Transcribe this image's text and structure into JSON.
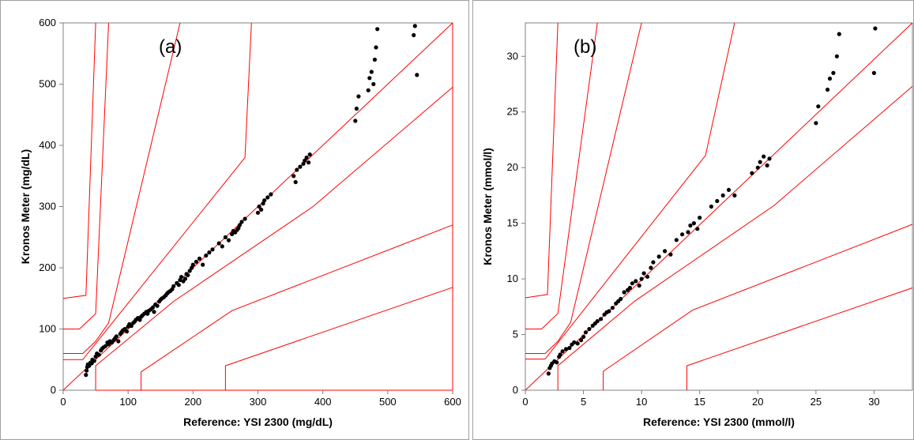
{
  "chart_data": [
    {
      "type": "scatter",
      "panel_label": "(a)",
      "xlabel": "Reference: YSI 2300 (mg/dL)",
      "ylabel": "Kronos Meter (mg/dL)",
      "xlim": [
        0,
        600
      ],
      "ylim": [
        0,
        600
      ],
      "xticks": [
        "0",
        "100",
        "200",
        "300",
        "400",
        "500",
        "600"
      ],
      "yticks": [
        "0",
        "100",
        "200",
        "300",
        "400",
        "500",
        "600"
      ],
      "grid": false,
      "zone_color": "#ff0000",
      "point_color": "#000000",
      "zone_lines": [
        [
          [
            0,
            150
          ],
          [
            35,
            155
          ],
          [
            50,
            600
          ]
        ],
        [
          [
            0,
            100
          ],
          [
            25,
            100
          ],
          [
            50,
            125
          ],
          [
            70,
            600
          ]
        ],
        [
          [
            0,
            60
          ],
          [
            30,
            60
          ],
          [
            50,
            80
          ],
          [
            70,
            110
          ],
          [
            180,
            600
          ]
        ],
        [
          [
            0,
            50
          ],
          [
            30,
            50
          ],
          [
            280,
            380
          ],
          [
            290,
            600
          ]
        ],
        [
          [
            0,
            0
          ],
          [
            600,
            600
          ]
        ],
        [
          [
            50,
            0
          ],
          [
            50,
            40
          ],
          [
            170,
            145
          ],
          [
            385,
            300
          ],
          [
            600,
            495
          ]
        ],
        [
          [
            120,
            0
          ],
          [
            120,
            30
          ],
          [
            260,
            130
          ],
          [
            600,
            270
          ]
        ],
        [
          [
            250,
            0
          ],
          [
            250,
            40
          ],
          [
            600,
            168
          ]
        ],
        [
          [
            50,
            0
          ],
          [
            600,
            0
          ],
          [
            600,
            600
          ]
        ]
      ],
      "x": [
        35,
        36,
        37,
        38,
        40,
        42,
        44,
        45,
        48,
        50,
        52,
        55,
        58,
        60,
        62,
        65,
        68,
        70,
        72,
        75,
        78,
        80,
        82,
        85,
        88,
        90,
        92,
        95,
        98,
        100,
        102,
        105,
        108,
        110,
        112,
        115,
        118,
        120,
        122,
        125,
        128,
        130,
        132,
        135,
        138,
        140,
        142,
        145,
        148,
        150,
        152,
        155,
        158,
        160,
        162,
        165,
        168,
        170,
        175,
        178,
        180,
        182,
        185,
        188,
        190,
        192,
        195,
        198,
        200,
        205,
        210,
        215,
        220,
        225,
        230,
        240,
        245,
        250,
        255,
        260,
        262,
        265,
        268,
        270,
        272,
        275,
        280,
        300,
        302,
        305,
        308,
        310,
        315,
        320,
        355,
        358,
        360,
        365,
        370,
        372,
        375,
        378,
        380,
        450,
        452,
        455,
        470,
        472,
        475,
        478,
        480,
        482,
        484,
        540,
        542,
        545
      ],
      "y": [
        25,
        32,
        38,
        42,
        40,
        45,
        44,
        50,
        48,
        55,
        60,
        58,
        65,
        68,
        70,
        72,
        78,
        75,
        80,
        78,
        82,
        85,
        88,
        80,
        92,
        95,
        98,
        100,
        96,
        104,
        108,
        105,
        110,
        112,
        115,
        118,
        115,
        120,
        122,
        125,
        128,
        125,
        130,
        132,
        135,
        128,
        140,
        138,
        145,
        148,
        150,
        152,
        155,
        158,
        160,
        162,
        165,
        170,
        175,
        172,
        180,
        185,
        178,
        182,
        190,
        188,
        195,
        200,
        205,
        210,
        215,
        205,
        220,
        225,
        230,
        240,
        235,
        250,
        245,
        255,
        260,
        258,
        262,
        265,
        270,
        275,
        280,
        290,
        300,
        295,
        305,
        310,
        315,
        320,
        350,
        340,
        360,
        365,
        370,
        375,
        380,
        372,
        385,
        440,
        460,
        480,
        490,
        510,
        520,
        500,
        540,
        560,
        590,
        580,
        595,
        515
      ]
    },
    {
      "type": "scatter",
      "panel_label": "(b)",
      "xlabel": "Reference: YSI 2300 (mmol/l)",
      "ylabel": "Kronos Meter (mmol/l)",
      "xlim": [
        0,
        33.3
      ],
      "ylim": [
        0,
        33
      ],
      "xticks": [
        "0",
        "5",
        "10",
        "15",
        "20",
        "25",
        "30"
      ],
      "yticks": [
        "0",
        "5",
        "10",
        "15",
        "20",
        "25",
        "30"
      ],
      "grid": false,
      "zone_color": "#ff0000",
      "point_color": "#000000",
      "zone_lines": [
        [
          [
            0,
            8.3
          ],
          [
            1.9,
            8.6
          ],
          [
            2.8,
            33
          ]
        ],
        [
          [
            0,
            5.5
          ],
          [
            1.4,
            5.5
          ],
          [
            2.8,
            6.9
          ],
          [
            6.2,
            33
          ]
        ],
        [
          [
            0,
            3.3
          ],
          [
            1.7,
            3.3
          ],
          [
            2.8,
            4.4
          ],
          [
            3.9,
            6.1
          ],
          [
            10,
            33
          ]
        ],
        [
          [
            0,
            2.8
          ],
          [
            1.7,
            2.8
          ],
          [
            15.5,
            21.1
          ],
          [
            18,
            33
          ]
        ],
        [
          [
            0,
            0
          ],
          [
            33.3,
            33
          ]
        ],
        [
          [
            2.8,
            0
          ],
          [
            2.8,
            2.2
          ],
          [
            9.4,
            8
          ],
          [
            21.4,
            16.6
          ],
          [
            33.3,
            27.3
          ]
        ],
        [
          [
            6.7,
            0
          ],
          [
            6.7,
            1.7
          ],
          [
            14.4,
            7.2
          ],
          [
            33.3,
            14.9
          ]
        ],
        [
          [
            13.9,
            0
          ],
          [
            13.9,
            2.2
          ],
          [
            33.3,
            9.2
          ]
        ]
      ],
      "x": [
        2,
        2.1,
        2.2,
        2.3,
        2.5,
        2.7,
        2.9,
        3,
        3.2,
        3.5,
        3.8,
        4,
        4.2,
        4.5,
        4.8,
        5,
        5.2,
        5.5,
        5.8,
        6,
        6.2,
        6.5,
        6.8,
        7,
        7.2,
        7.5,
        7.8,
        8,
        8.2,
        8.5,
        8.8,
        9,
        9.2,
        9.5,
        9.8,
        10,
        10.2,
        10.5,
        10.8,
        11,
        11.5,
        12,
        12.5,
        13,
        13.5,
        14,
        14.2,
        14.5,
        14.8,
        15,
        16,
        16.5,
        17,
        17.5,
        18,
        19.5,
        20,
        20.2,
        20.5,
        20.8,
        21,
        25,
        25.2,
        26,
        26.2,
        26.5,
        26.8,
        27,
        30,
        30.1
      ],
      "y": [
        1.5,
        2,
        2.2,
        2.4,
        2.6,
        2.5,
        3,
        3.2,
        3.5,
        3.7,
        3.8,
        4.1,
        4.3,
        4.2,
        4.5,
        4.8,
        5.2,
        5.5,
        5.8,
        6,
        6.2,
        6.4,
        6.8,
        7,
        7.1,
        7.4,
        7.8,
        8,
        8.2,
        8.8,
        9,
        9.2,
        9.6,
        9.8,
        9.4,
        10,
        10.5,
        10.2,
        11,
        11.5,
        12,
        12.5,
        12.2,
        13.5,
        14,
        14.2,
        14.8,
        15,
        14.5,
        15.5,
        16.5,
        17,
        17.5,
        18,
        17.5,
        19.5,
        20,
        20.5,
        21,
        20.2,
        20.8,
        24,
        25.5,
        27,
        28,
        28.5,
        30,
        32,
        28.5,
        32.5
      ]
    }
  ]
}
